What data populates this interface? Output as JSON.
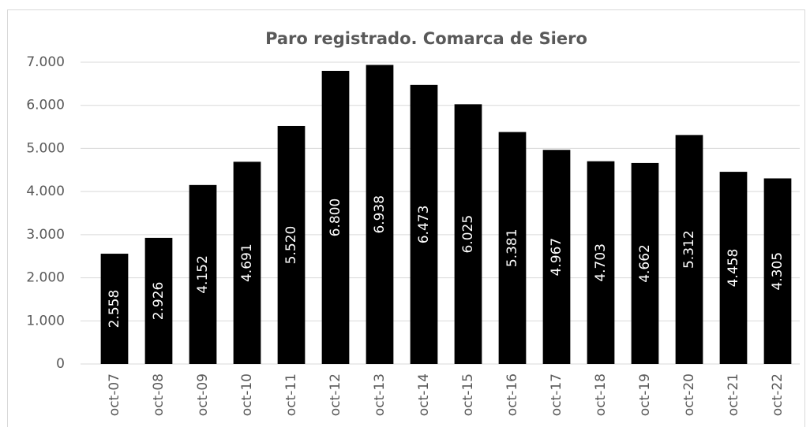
{
  "chart_data": {
    "type": "bar",
    "title": "Paro registrado. Comarca de Siero",
    "categories": [
      "oct-07",
      "oct-08",
      "oct-09",
      "oct-10",
      "oct-11",
      "oct-12",
      "oct-13",
      "oct-14",
      "oct-15",
      "oct-16",
      "oct-17",
      "oct-18",
      "oct-19",
      "oct-20",
      "oct-21",
      "oct-22"
    ],
    "values": [
      2558,
      2926,
      4152,
      4691,
      5520,
      6800,
      6938,
      6473,
      6025,
      5381,
      4967,
      4703,
      4662,
      5312,
      4458,
      4305
    ],
    "value_labels": [
      "2.558",
      "2.926",
      "4.152",
      "4.691",
      "5.520",
      "6.800",
      "6.938",
      "6.473",
      "6.025",
      "5.381",
      "4.967",
      "4.703",
      "4.662",
      "5.312",
      "4.458",
      "4.305"
    ],
    "color": "#000000",
    "ylim": [
      0,
      7000
    ],
    "yticks": [
      0,
      {
        "value": 1000,
        "label": "1.000"
      },
      {
        "value": 2000,
        "label": "2.000"
      },
      {
        "value": 3000,
        "label": "3.000"
      },
      {
        "value": 4000,
        "label": "4.000"
      },
      {
        "value": 5000,
        "label": "5.000"
      },
      {
        "value": 6000,
        "label": "6.000"
      },
      {
        "value": 7000,
        "label": "7.000"
      }
    ],
    "grid": true
  }
}
